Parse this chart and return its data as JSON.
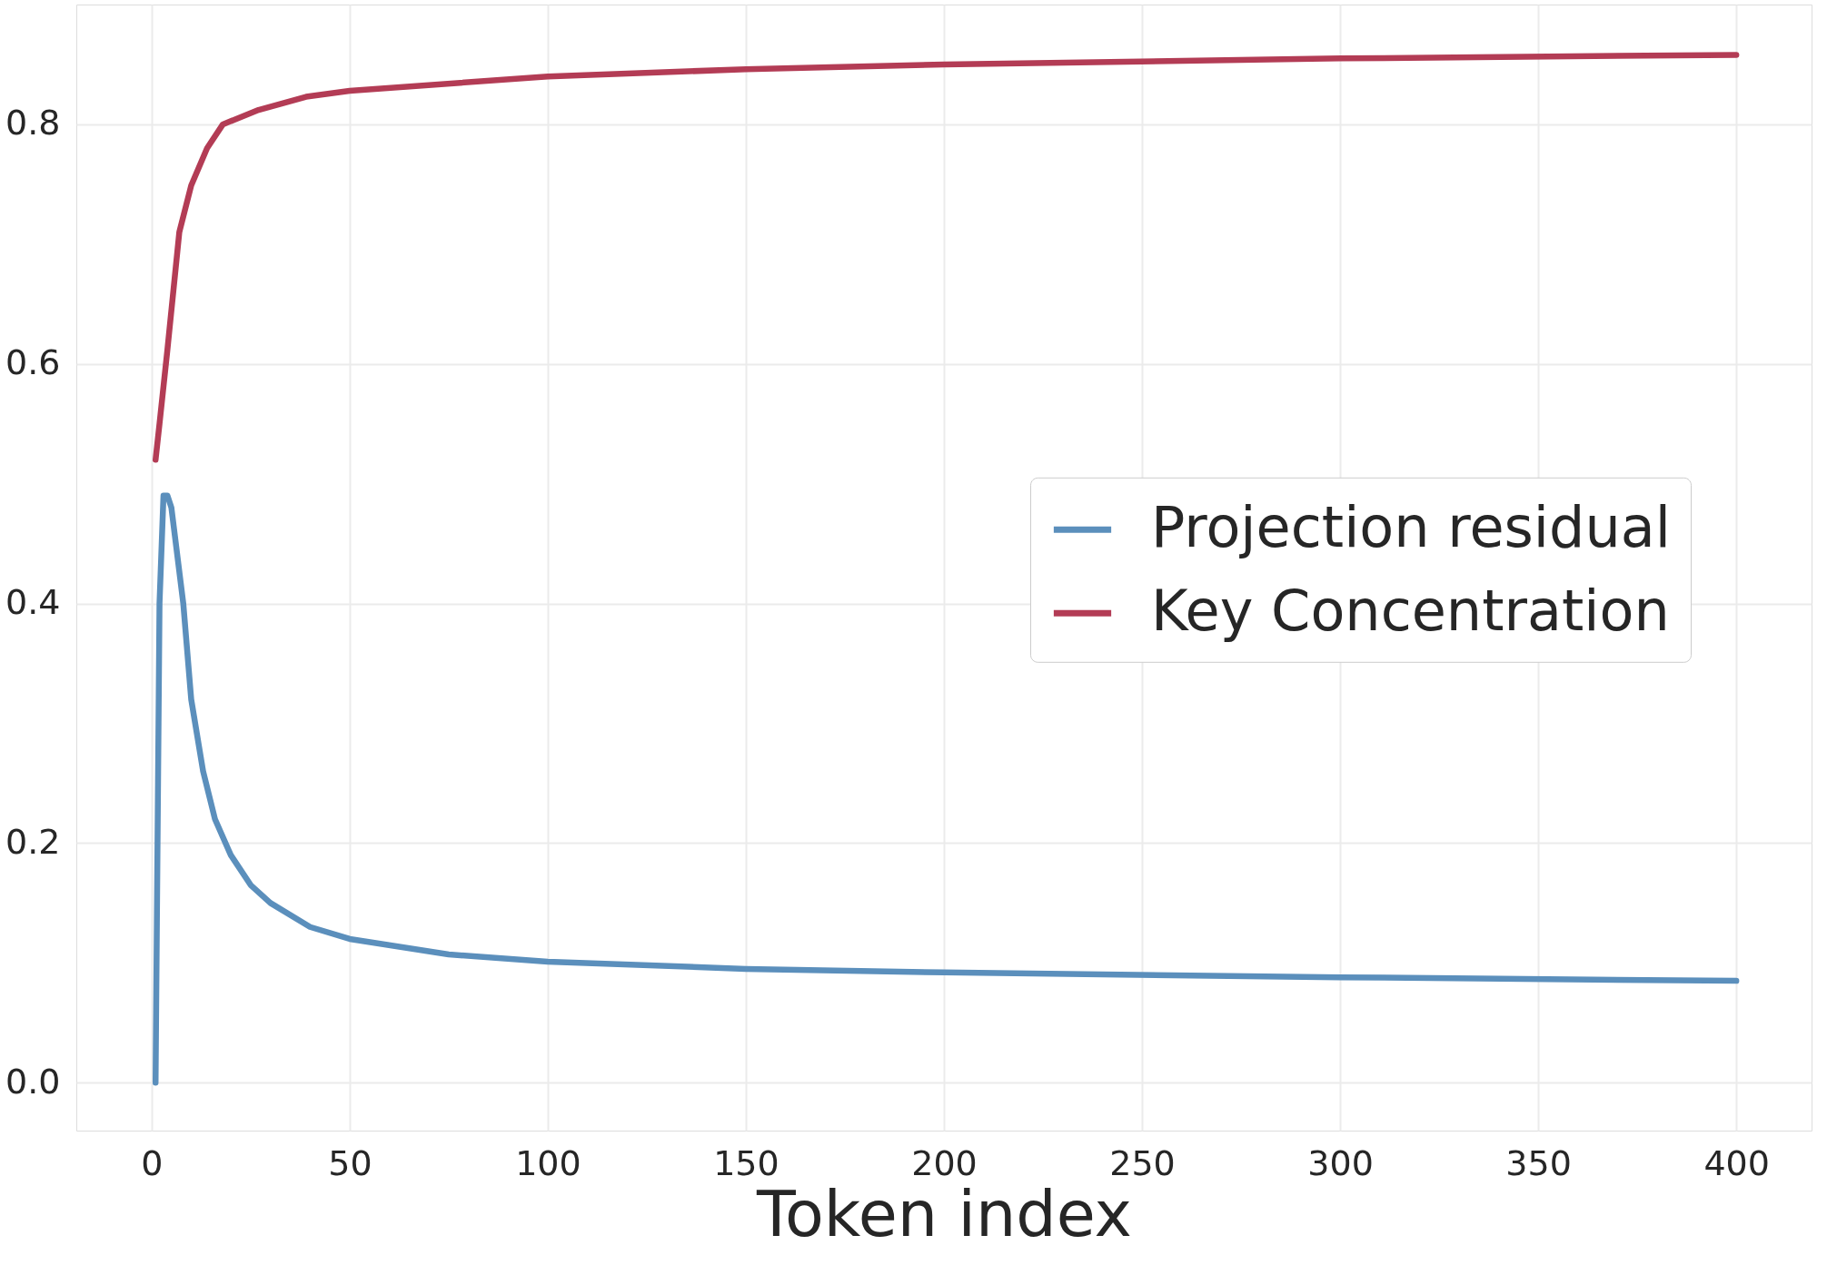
{
  "chart_data": {
    "type": "line",
    "xlabel": "Token index",
    "xlim": [
      -19,
      419
    ],
    "ylim": [
      -0.04,
      0.9
    ],
    "xticks": [
      0,
      50,
      100,
      150,
      200,
      250,
      300,
      350,
      400
    ],
    "yticks": [
      {
        "value": 0,
        "label": "0.0"
      },
      0.2,
      0.4,
      0.6,
      0.8
    ],
    "grid": true,
    "legend": "right",
    "line_style": "solid",
    "marker": "none",
    "series": [
      {
        "name": "Projection residual",
        "color": "#5b8fbc",
        "x": [
          1,
          2,
          3,
          4,
          5,
          8,
          10,
          13,
          16,
          20,
          25,
          30,
          40,
          50,
          75,
          100,
          150,
          200,
          300,
          400
        ],
        "values": [
          0,
          0.4,
          0.49,
          0.49,
          0.48,
          0.4,
          0.32,
          0.26,
          0.22,
          0.19,
          0.165,
          0.15,
          0.13,
          0.12,
          0.107,
          0.101,
          0.095,
          0.092,
          0.088,
          0.085
        ]
      },
      {
        "name": "Key Concentration",
        "color": "#b33c55",
        "x": [
          1,
          2,
          4,
          7,
          10,
          14,
          18,
          27,
          39,
          50,
          100,
          150,
          200,
          300,
          400
        ],
        "values": [
          0.52,
          0.55,
          0.612,
          0.71,
          0.749,
          0.78,
          0.8,
          0.812,
          0.823,
          0.828,
          0.84,
          0.846,
          0.85,
          0.855,
          0.858
        ]
      }
    ]
  }
}
